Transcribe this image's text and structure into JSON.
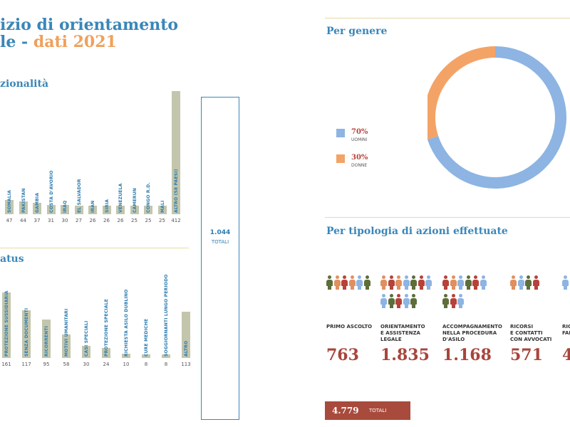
{
  "title": {
    "line1": "izio di orientamento",
    "line2_part1": "le - ",
    "line2_part2": "dati 2021"
  },
  "colors": {
    "blue": "#3a86b8",
    "orange": "#f0a05c",
    "green": "#c3c6ac",
    "red": "#a8453b",
    "male": "#8db4e2",
    "female": "#f4a366"
  },
  "nationality": {
    "header": "zionalità",
    "total_value": "1.044",
    "total_label": "TOTALI"
  },
  "status": {
    "header": "atus"
  },
  "gender": {
    "header": "Per genere"
  },
  "actions": {
    "header": "Per tipologia di azioni effettuate",
    "total_value": "4.779",
    "total_label": "TOTALI",
    "items": [
      {
        "label": "PRIMO ASCOLTO",
        "value": "763"
      },
      {
        "label": "ORIENTAMENTO\nE ASSISTENZA\nLEGALE",
        "value": "1.835"
      },
      {
        "label": "ACCOMPAGNAMENTO\nNELLA PROCEDURA\nD'ASILO",
        "value": "1.168"
      },
      {
        "label": "RICORSI\nE CONTATTI\nCON AVVOCATI",
        "value": "571"
      },
      {
        "label": "RICO\nFAM",
        "value": "4"
      }
    ]
  },
  "chart_data": [
    {
      "type": "bar",
      "categories": [
        "SOMALIA",
        "PAKISTAN",
        "GAMBIA",
        "COSTA D'AVORIO",
        "IRAQ",
        "EL SALVADOR",
        "IRAN",
        "SIRIA",
        "VENEZUELA",
        "CAMERUN",
        "CONGO R.D.",
        "MALI",
        "ALTRO (58 PAESI)"
      ],
      "values": [
        47,
        44,
        37,
        31,
        30,
        27,
        26,
        26,
        26,
        25,
        25,
        25,
        412
      ],
      "value_labels": [
        "47",
        "44",
        "37",
        "31",
        "30",
        "27",
        "26",
        "26",
        "26",
        "25",
        "25",
        "25",
        "412"
      ]
    },
    {
      "type": "bar",
      "categories": [
        "PROTEZIONE SUSSIDIARIA",
        "SENZA DOCUMENTI",
        "RICORRENTI",
        "MOTIVI UMANITARI",
        "CASI SPECIALI",
        "PROTEZIONE SPECIALE",
        "RICHIESTA ASILO DUBLINO",
        "CURE MEDICHE",
        "SOGGIORNANTI LUNGO PERIODO",
        "ALTRO"
      ],
      "values": [
        161,
        117,
        95,
        58,
        30,
        24,
        10,
        8,
        8,
        113
      ],
      "value_labels": [
        "161",
        "117",
        "95",
        "58",
        "30",
        "24",
        "10",
        "8",
        "8",
        "113"
      ]
    },
    {
      "type": "pie",
      "categories": [
        "UOMINI",
        "DONNE"
      ],
      "values": [
        70,
        30
      ],
      "value_labels": [
        "70%",
        "30%"
      ]
    }
  ]
}
